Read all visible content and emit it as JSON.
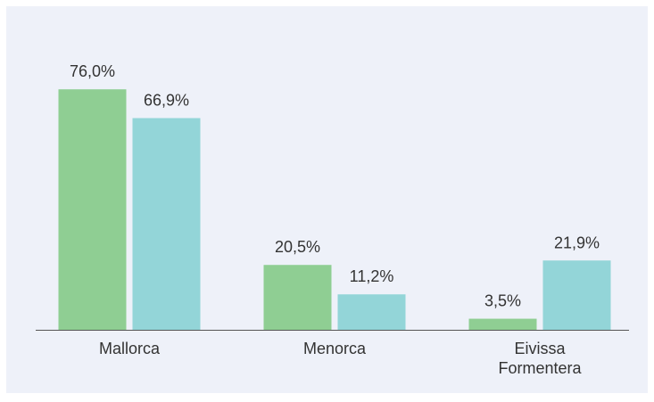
{
  "chart_data": {
    "type": "bar",
    "categories": [
      "Mallorca",
      "Menorca",
      "Eivissa Formentera"
    ],
    "series": [
      {
        "color": "#8fce93",
        "values": [
          76.0,
          20.5,
          3.5
        ],
        "value_labels": [
          "76,0%",
          "20,5%",
          "3,5%"
        ]
      },
      {
        "color": "#93d5d8",
        "values": [
          66.9,
          11.2,
          21.9
        ],
        "value_labels": [
          "66,9%",
          "11,2%",
          "21,9%"
        ]
      }
    ]
  }
}
